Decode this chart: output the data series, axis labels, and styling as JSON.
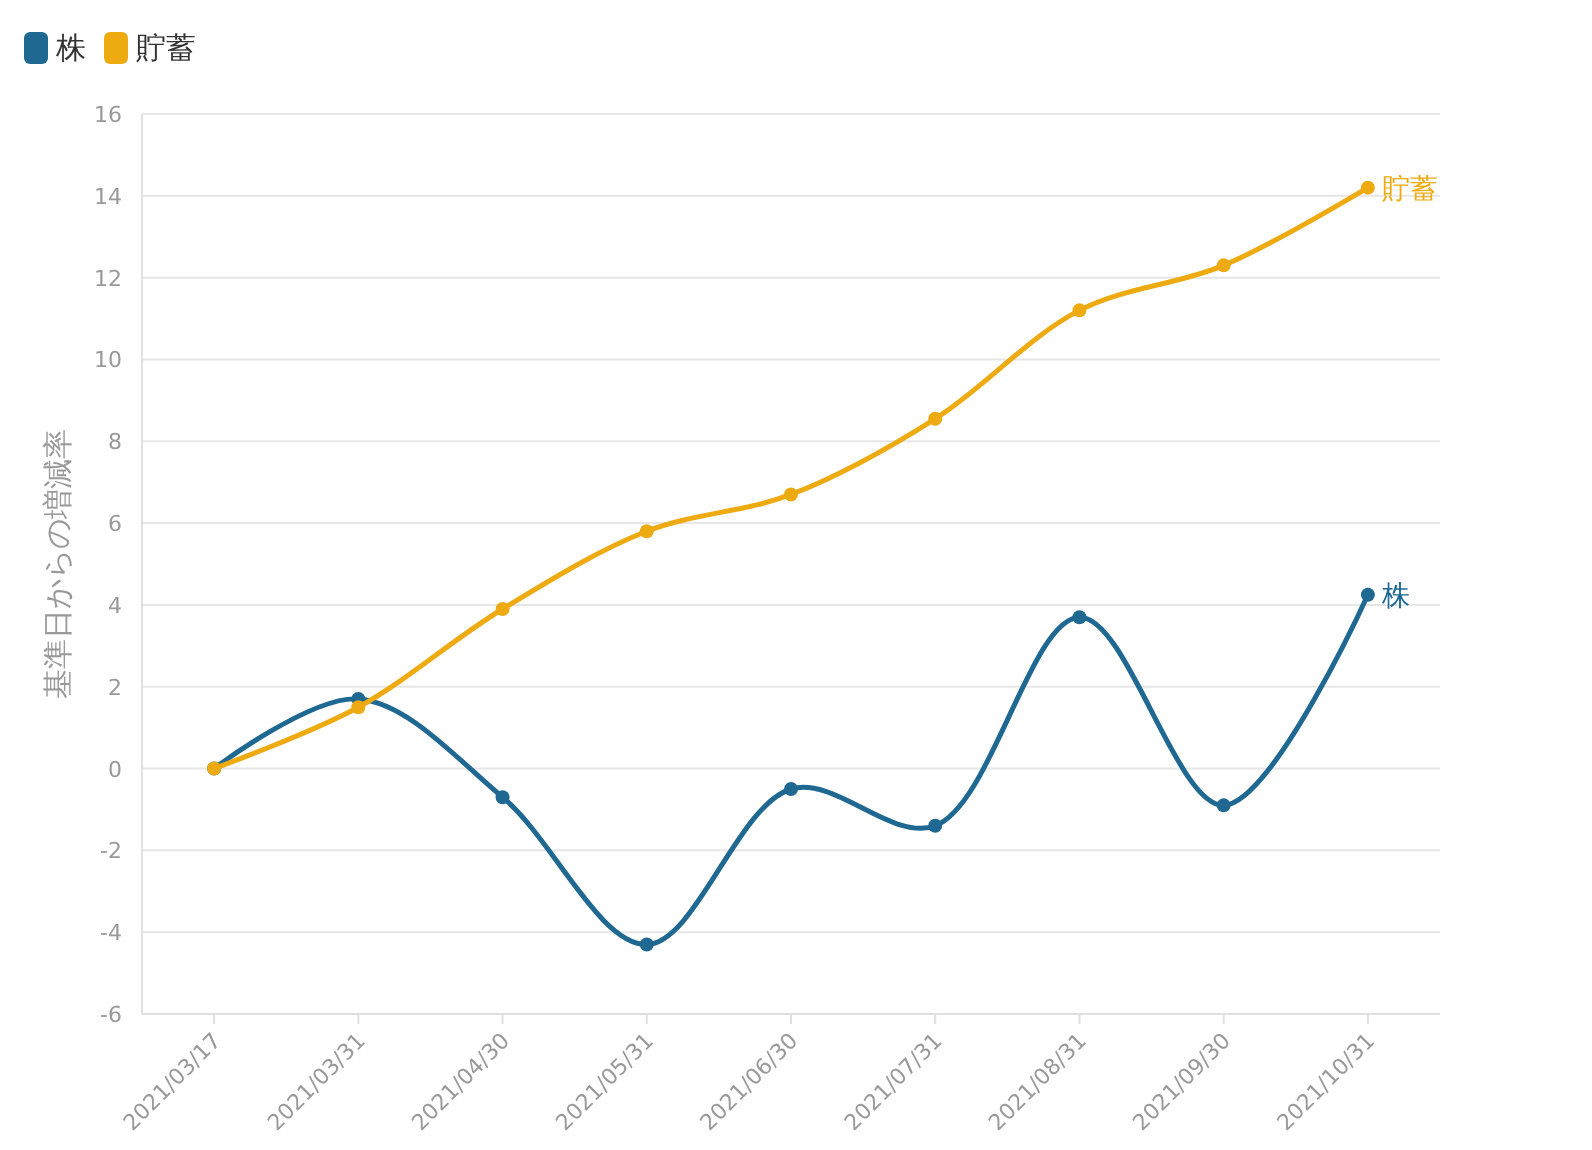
{
  "chart_data": {
    "type": "line",
    "ylabel": "基準日からの増減率",
    "categories": [
      "2021/03/17",
      "2021/03/31",
      "2021/04/30",
      "2021/05/31",
      "2021/06/30",
      "2021/07/31",
      "2021/08/31",
      "2021/09/30",
      "2021/10/31"
    ],
    "series": [
      {
        "name": "株",
        "color": "#1f6891",
        "values": [
          0,
          1.7,
          -0.7,
          -4.3,
          -0.5,
          -1.4,
          3.7,
          -0.9,
          4.25
        ]
      },
      {
        "name": "貯蓄",
        "color": "#eeaa11",
        "values": [
          0,
          1.5,
          3.9,
          5.8,
          6.7,
          8.55,
          11.2,
          12.3,
          14.2
        ]
      }
    ],
    "ylim": [
      -6,
      16
    ],
    "yticks": [
      -6,
      -4,
      -2,
      0,
      2,
      4,
      6,
      8,
      10,
      12,
      14,
      16
    ],
    "grid": "y",
    "legend": "top left",
    "marker": "circle",
    "line_style": "solid"
  }
}
